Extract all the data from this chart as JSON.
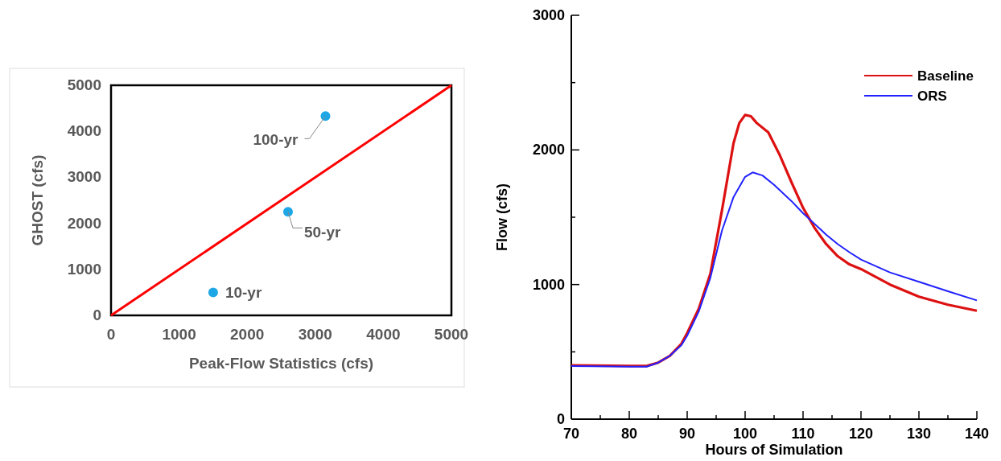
{
  "chart_data": [
    {
      "type": "scatter",
      "xlabel": "Peak-Flow Statistics (cfs)",
      "ylabel": "GHOST (cfs)",
      "xlim": [
        0,
        5000
      ],
      "ylim": [
        0,
        5000
      ],
      "xticks": [
        0,
        1000,
        2000,
        3000,
        4000,
        5000
      ],
      "yticks": [
        0,
        1000,
        2000,
        3000,
        4000,
        5000
      ],
      "grid": false,
      "legend": false,
      "series": [
        {
          "type": "line",
          "color": "#ff0000",
          "x": [
            0,
            5000
          ],
          "values": [
            0,
            5000
          ]
        },
        {
          "marker": "circle",
          "color": "#1ea7e6",
          "x": [
            1500,
            2600,
            3150
          ],
          "values": [
            500,
            2250,
            4330
          ]
        }
      ],
      "annotations": [
        {
          "text": "10-yr",
          "x": 1500,
          "y": 500
        },
        {
          "text": "50-yr",
          "x": 2600,
          "y": 2250
        },
        {
          "text": "100-yr",
          "x": 3150,
          "y": 4330
        }
      ]
    },
    {
      "type": "line",
      "xlabel": "Hours of Simulation",
      "ylabel": "Flow (cfs)",
      "xlim": [
        70,
        140
      ],
      "ylim": [
        0,
        3000
      ],
      "xticks": [
        70,
        {
          "value": 75,
          "label": null
        },
        80,
        {
          "value": 85,
          "label": null
        },
        90,
        {
          "value": 95,
          "label": null
        },
        100,
        {
          "value": 105,
          "label": null
        },
        110,
        {
          "value": 115,
          "label": null
        },
        120,
        {
          "value": 125,
          "label": null
        },
        130,
        {
          "value": 135,
          "label": null
        },
        140
      ],
      "yticks": [
        0,
        {
          "value": 500,
          "label": null
        },
        1000,
        {
          "value": 1500,
          "label": null
        },
        2000,
        {
          "value": 2500,
          "label": null
        },
        3000
      ],
      "grid": false,
      "legend": "top right",
      "line_style": "solid",
      "series": [
        {
          "name": "Baseline",
          "color": "#dd1111",
          "x": [
            70,
            80,
            83,
            85,
            87,
            89,
            90,
            92,
            94,
            96,
            97,
            98,
            99,
            100,
            101,
            102,
            104,
            106,
            108,
            110,
            112,
            114,
            116,
            118,
            120,
            125,
            130,
            135,
            140
          ],
          "values": [
            400,
            395,
            395,
            420,
            470,
            560,
            640,
            820,
            1080,
            1550,
            1800,
            2050,
            2200,
            2260,
            2250,
            2200,
            2130,
            1960,
            1760,
            1570,
            1420,
            1300,
            1210,
            1150,
            1115,
            1000,
            910,
            850,
            805
          ]
        },
        {
          "name": "ORS",
          "color": "#2222ff",
          "x": [
            70,
            80,
            83,
            85,
            87,
            89,
            90,
            92,
            94,
            96,
            98,
            100,
            101.3,
            103,
            105,
            108,
            110,
            112,
            114,
            116,
            118,
            120,
            125,
            130,
            135,
            140
          ],
          "values": [
            395,
            390,
            390,
            420,
            470,
            550,
            620,
            800,
            1050,
            1400,
            1650,
            1800,
            1833,
            1810,
            1740,
            1620,
            1530,
            1450,
            1370,
            1300,
            1240,
            1185,
            1090,
            1020,
            950,
            882
          ]
        }
      ]
    }
  ]
}
